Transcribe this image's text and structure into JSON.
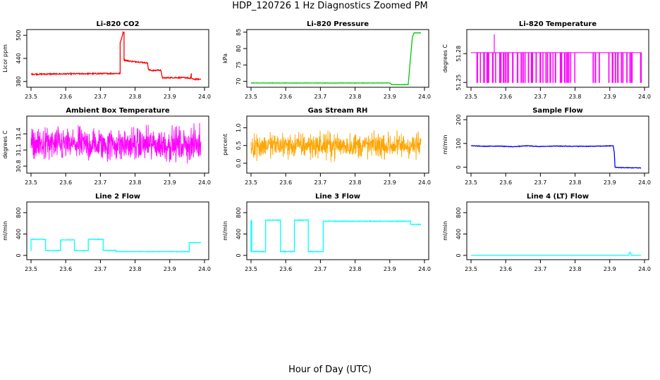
{
  "page": {
    "title": "HDP_120726  1 Hz Diagnostics Zoomed PM",
    "xlabel": "Hour of Day (UTC)"
  },
  "chart_data": [
    {
      "type": "line",
      "title": "Li-820 CO2",
      "xlabel": "",
      "ylabel": "Licor ppm",
      "xlim": [
        23.5,
        24.0
      ],
      "ylim": [
        365,
        515
      ],
      "xticks": [
        "23.5",
        "23.6",
        "23.7",
        "23.8",
        "23.9",
        "24.0"
      ],
      "yticks": [
        "380",
        "440",
        "500"
      ],
      "yticks_v": [
        380,
        440,
        500
      ],
      "series": [
        {
          "name": "CO2",
          "color": "#ff0000",
          "style": "line",
          "noise": 1.5,
          "x": [
            23.5,
            23.757,
            23.757,
            23.765,
            23.765,
            23.768,
            23.768,
            23.768,
            23.785,
            23.785,
            23.8,
            23.8,
            23.836,
            23.838,
            23.84,
            23.856,
            23.864,
            23.874,
            23.879,
            23.9,
            23.95,
            23.958,
            23.96,
            23.962,
            23.962,
            23.967,
            23.99
          ],
          "y": [
            399,
            401,
            480,
            505,
            508,
            508,
            508,
            436,
            433,
            433,
            431,
            432,
            428,
            413,
            410,
            408,
            410,
            409,
            389,
            390,
            390,
            387,
            389,
            401,
            389,
            386,
            386
          ]
        }
      ]
    },
    {
      "type": "line",
      "title": "Li-820 Pressure",
      "xlabel": "",
      "ylabel": "kPa",
      "xlim": [
        23.5,
        24.0
      ],
      "ylim": [
        68.2,
        85.8
      ],
      "xticks": [
        "23.5",
        "23.6",
        "23.7",
        "23.8",
        "23.9",
        "24.0"
      ],
      "yticks": [
        "70",
        "75",
        "80",
        "85"
      ],
      "yticks_v": [
        70,
        75,
        80,
        85
      ],
      "series": [
        {
          "name": "Pressure",
          "color": "#00c800",
          "style": "line",
          "noise": 0.05,
          "x": [
            23.5,
            23.9,
            23.906,
            23.953,
            23.965,
            23.97,
            23.99
          ],
          "y": [
            69.5,
            69.5,
            69.0,
            69.0,
            83.5,
            84.8,
            84.8
          ]
        }
      ]
    },
    {
      "type": "line",
      "title": "Li-820 Temperature",
      "xlabel": "",
      "ylabel": "degrees C",
      "xlim": [
        23.5,
        24.0
      ],
      "ylim": [
        51.245,
        51.305
      ],
      "xticks": [
        "23.5",
        "23.6",
        "23.7",
        "23.8",
        "23.9",
        "24.0"
      ],
      "yticks": [
        "51.25",
        "51.28"
      ],
      "yticks_v": [
        51.25,
        51.28
      ],
      "series": [
        {
          "name": "Temperature",
          "color": "#ff00ff",
          "style": "steps",
          "base": 51.281,
          "low": 51.25,
          "spike_x": 23.567,
          "spike_y": 51.3,
          "x": [
            23.5,
            23.99
          ]
        }
      ]
    },
    {
      "type": "line",
      "title": "Ambient Box Temperature",
      "xlabel": "",
      "ylabel": "degrees C",
      "xlim": [
        23.5,
        24.0
      ],
      "ylim": [
        30.67,
        31.73
      ],
      "xticks": [
        "23.5",
        "23.6",
        "23.7",
        "23.8",
        "23.9",
        "24.0"
      ],
      "yticks": [
        "30.8",
        "31.1",
        "31.4"
      ],
      "yticks_v": [
        30.8,
        31.1,
        31.4
      ],
      "series": [
        {
          "name": "Ambient Box Temperature",
          "color": "#ff00ff",
          "style": "dense",
          "center": 31.2,
          "amp": 0.28,
          "x": [
            23.5,
            23.99
          ]
        }
      ]
    },
    {
      "type": "line",
      "title": "Gas Stream RH",
      "xlabel": "",
      "ylabel": "percent",
      "xlim": [
        23.5,
        24.0
      ],
      "ylim": [
        -0.28,
        1.33
      ],
      "xticks": [
        "23.5",
        "23.6",
        "23.7",
        "23.8",
        "23.9",
        "24.0"
      ],
      "yticks": [
        "0.0",
        "0.5",
        "1.0"
      ],
      "yticks_v": [
        0.0,
        0.5,
        1.0
      ],
      "series": [
        {
          "name": "RH",
          "color": "#ffa500",
          "style": "dense",
          "center": 0.5,
          "amp": 0.33,
          "x": [
            23.5,
            23.99
          ]
        }
      ]
    },
    {
      "type": "line",
      "title": "Sample Flow",
      "xlabel": "",
      "ylabel": "ml/min",
      "xlim": [
        23.5,
        24.0
      ],
      "ylim": [
        -25,
        215
      ],
      "xticks": [
        "23.5",
        "23.6",
        "23.7",
        "23.8",
        "23.9",
        "24.0"
      ],
      "yticks": [
        "0",
        "100",
        "200"
      ],
      "yticks_v": [
        0,
        100,
        200
      ],
      "series": [
        {
          "name": "Sample Flow",
          "color": "#0000ff",
          "style": "line",
          "noise": 1.2,
          "x": [
            23.5,
            23.54,
            23.58,
            23.62,
            23.66,
            23.7,
            23.74,
            23.8,
            23.85,
            23.91,
            23.913,
            23.915,
            23.93,
            23.99
          ],
          "y": [
            90,
            88,
            89,
            86,
            90,
            87,
            89,
            88,
            88,
            90,
            60,
            0,
            -2,
            -3
          ]
        }
      ]
    },
    {
      "type": "line",
      "title": "Line 2 Flow",
      "xlabel": "",
      "ylabel": "ml/min",
      "xlim": [
        23.5,
        24.0
      ],
      "ylim": [
        -80,
        1000
      ],
      "xticks": [
        "23.5",
        "23.6",
        "23.7",
        "23.8",
        "23.9",
        "24.0"
      ],
      "yticks": [
        "0",
        "400",
        "800"
      ],
      "yticks_v": [
        0,
        400,
        800
      ],
      "series": [
        {
          "name": "Line 2 Flow",
          "color": "#00ffff",
          "style": "line",
          "noise": 4,
          "x": [
            23.5,
            23.5,
            23.542,
            23.542,
            23.585,
            23.585,
            23.625,
            23.625,
            23.665,
            23.665,
            23.708,
            23.708,
            23.745,
            23.745,
            23.956,
            23.956,
            23.99
          ],
          "y": [
            80,
            300,
            300,
            90,
            90,
            290,
            290,
            90,
            90,
            300,
            300,
            95,
            95,
            70,
            70,
            240,
            240
          ]
        }
      ]
    },
    {
      "type": "line",
      "title": "Line 3 Flow",
      "xlabel": "",
      "ylabel": "ml/min",
      "xlim": [
        23.5,
        24.0
      ],
      "ylim": [
        -80,
        1000
      ],
      "xticks": [
        "23.5",
        "23.6",
        "23.7",
        "23.8",
        "23.9",
        "24.0"
      ],
      "yticks": [
        "0",
        "400",
        "800"
      ],
      "yticks_v": [
        0,
        400,
        800
      ],
      "series": [
        {
          "name": "Line 3 Flow",
          "color": "#00ffff",
          "style": "line",
          "noise": 6,
          "x": [
            23.5,
            23.5,
            23.502,
            23.502,
            23.542,
            23.542,
            23.585,
            23.585,
            23.625,
            23.625,
            23.665,
            23.665,
            23.708,
            23.708,
            23.95,
            23.96,
            23.96,
            23.99
          ],
          "y": [
            70,
            650,
            650,
            70,
            70,
            660,
            660,
            70,
            70,
            660,
            660,
            70,
            70,
            640,
            640,
            640,
            580,
            580
          ]
        }
      ]
    },
    {
      "type": "line",
      "title": "Line 4 (LT) Flow",
      "xlabel": "",
      "ylabel": "ml/min",
      "xlim": [
        23.5,
        24.0
      ],
      "ylim": [
        -80,
        1000
      ],
      "xticks": [
        "23.5",
        "23.6",
        "23.7",
        "23.8",
        "23.9",
        "24.0"
      ],
      "yticks": [
        "0",
        "400",
        "800"
      ],
      "yticks_v": [
        0,
        400,
        800
      ],
      "series": [
        {
          "name": "Line 4 Flow",
          "color": "#00ffff",
          "style": "line",
          "noise": 0,
          "x": [
            23.5,
            23.955,
            23.956,
            23.958,
            23.96,
            23.962,
            23.99
          ],
          "y": [
            0,
            0,
            40,
            60,
            45,
            0,
            0
          ]
        }
      ]
    }
  ]
}
